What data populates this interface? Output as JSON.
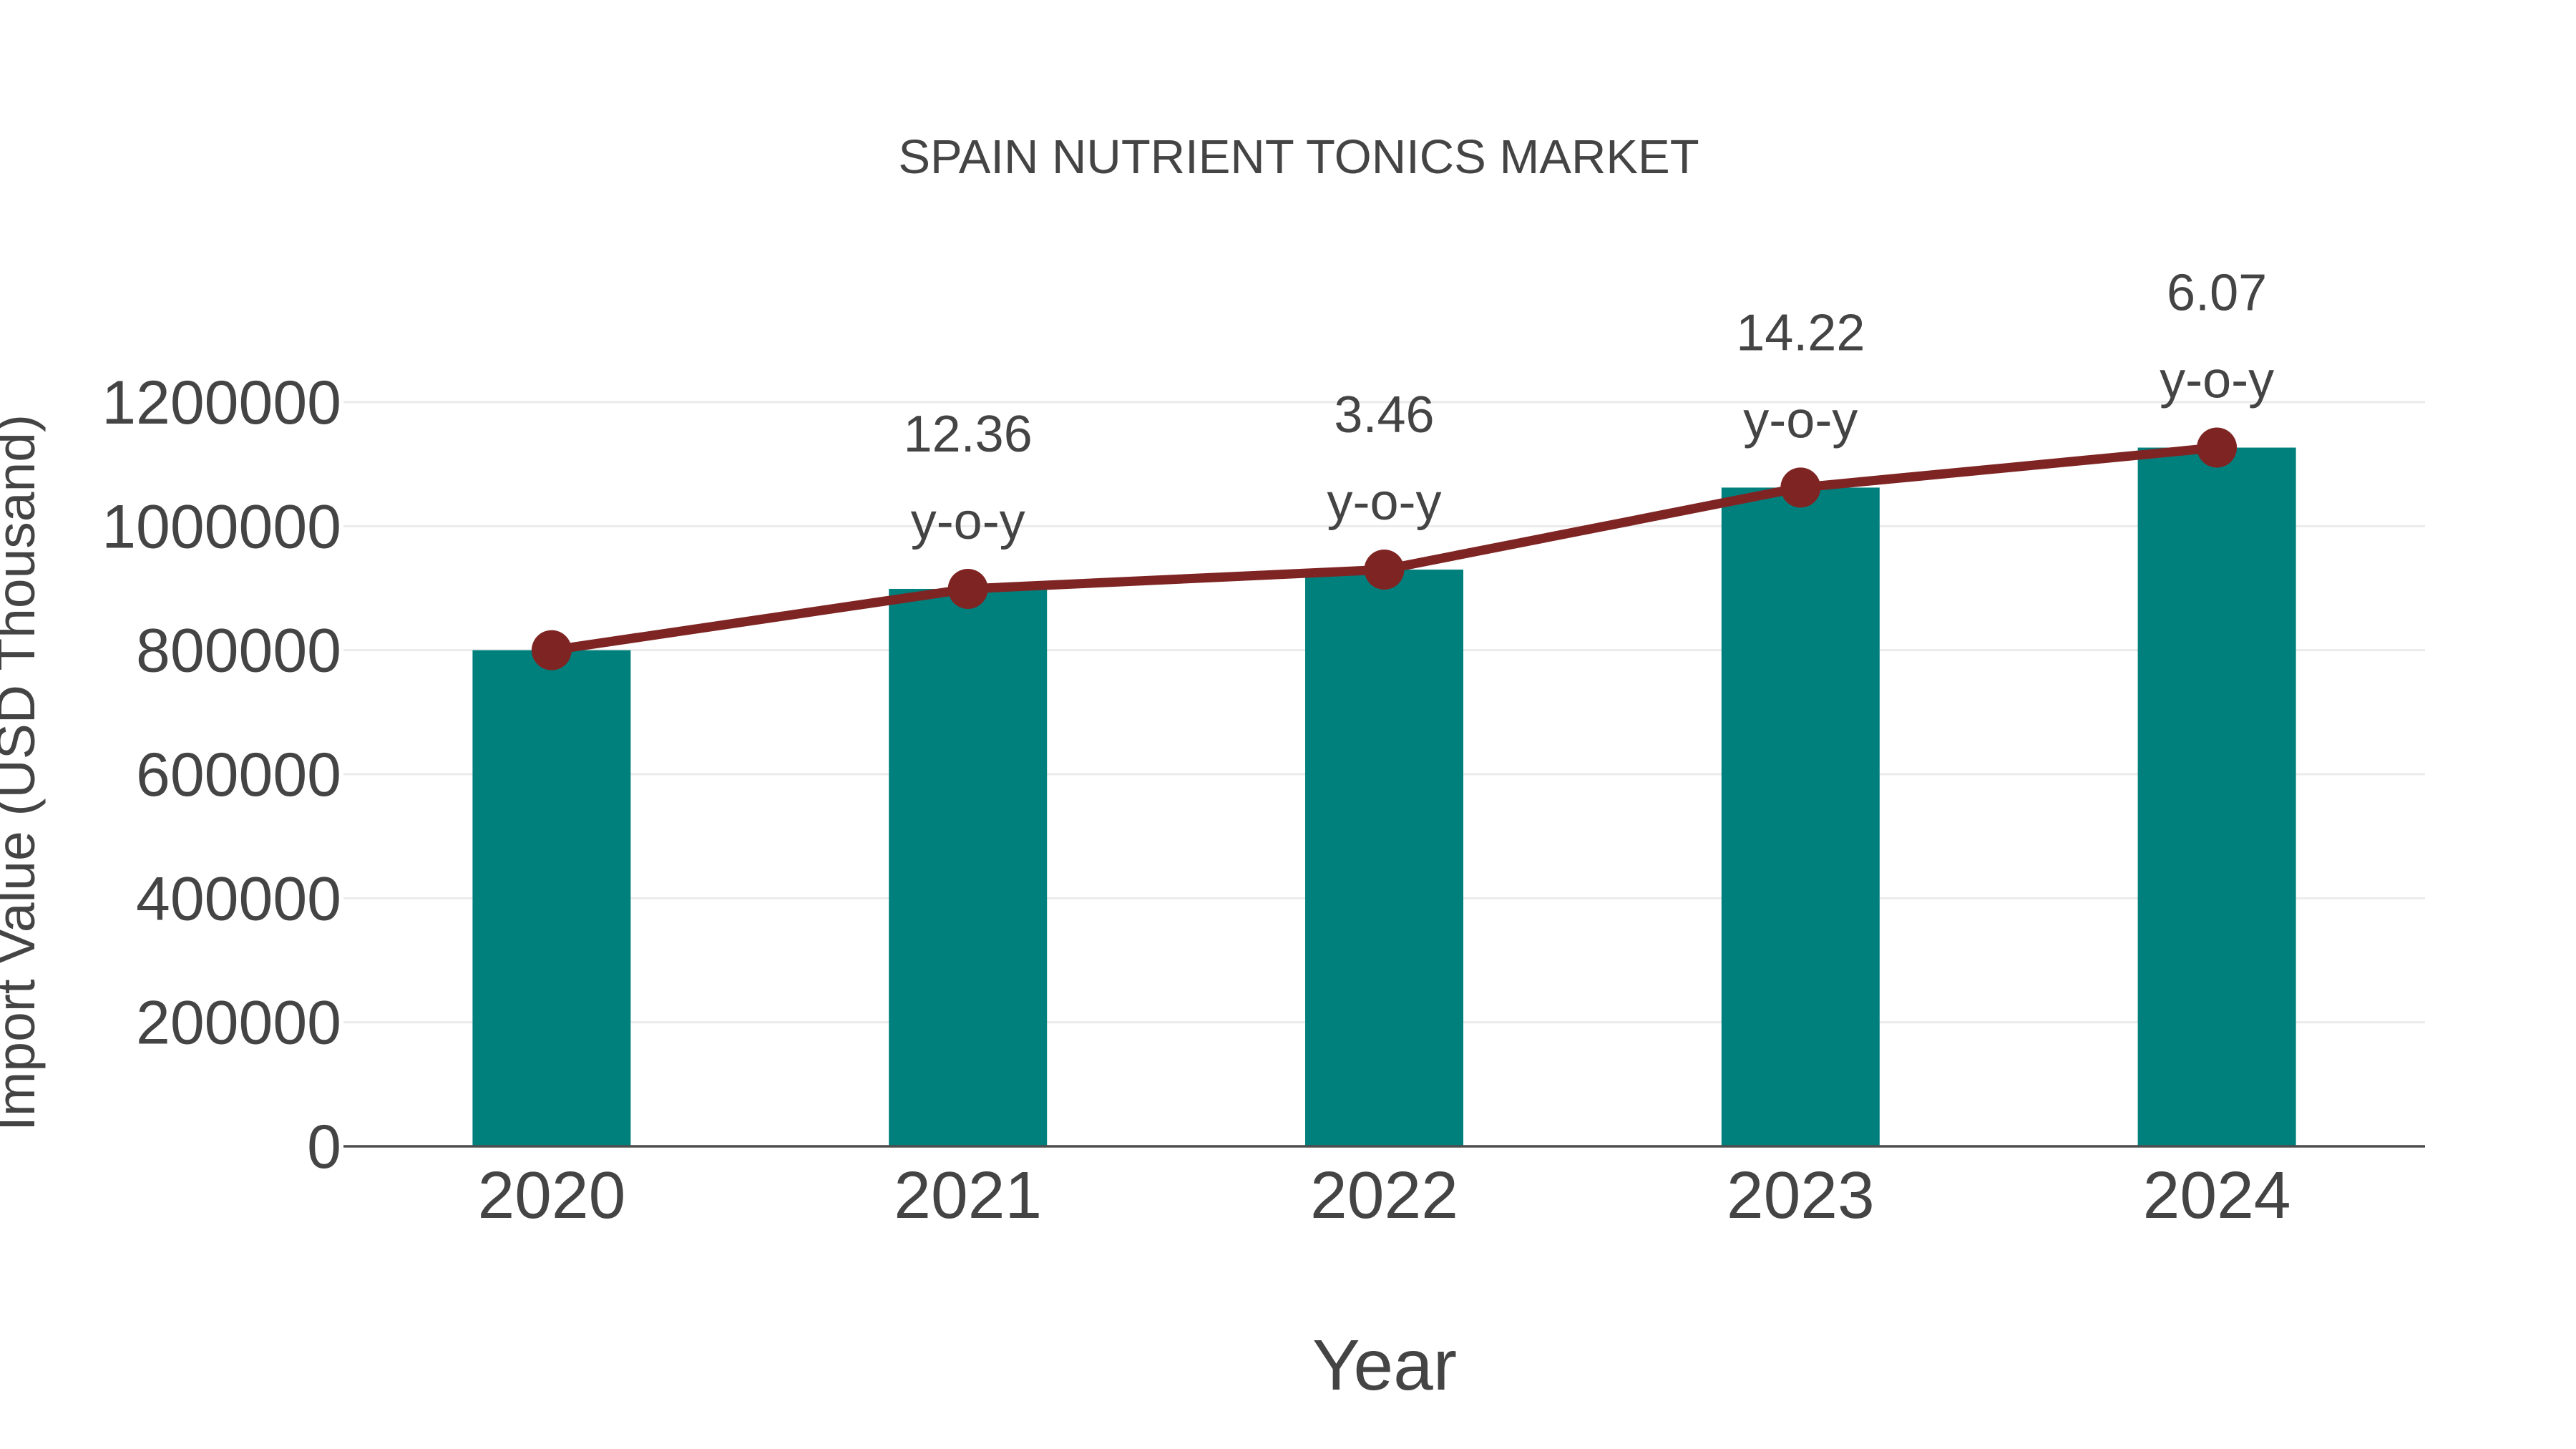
{
  "figure": {
    "background": "#FFFFFF"
  },
  "chart_data": {
    "type": "bar",
    "subtype": "bar-with-line-overlay",
    "title": "SPAIN NUTRIENT TONICS MARKET",
    "xlabel": "Year",
    "ylabel": "Import Value (USD Thousand)",
    "categories": [
      "2020",
      "2021",
      "2022",
      "2023",
      "2024"
    ],
    "series": [
      {
        "name": "Import Value (USD Thousand)",
        "type": "bar",
        "values": [
          800000,
          898880,
          929981,
          1062224,
          1126701
        ],
        "color": "#00807D"
      },
      {
        "name": "Import Value trend",
        "type": "line",
        "values": [
          800000,
          898880,
          929981,
          1062224,
          1126701
        ],
        "color": "#7E2524",
        "marker": "circle"
      }
    ],
    "annotations": [
      {
        "category": "2021",
        "lines": [
          "12.36",
          "y-o-y"
        ]
      },
      {
        "category": "2022",
        "lines": [
          "3.46",
          "y-o-y"
        ]
      },
      {
        "category": "2023",
        "lines": [
          "14.22",
          "y-o-y"
        ]
      },
      {
        "category": "2024",
        "lines": [
          "6.07",
          "y-o-y"
        ]
      }
    ],
    "y_ticks": [
      0,
      200000,
      400000,
      600000,
      800000,
      1000000,
      1200000
    ],
    "ylim": [
      0,
      1200000
    ],
    "grid": true,
    "legend_position": "none",
    "colors": {
      "bar": "#00807D",
      "line": "#7E2524",
      "text": "#444444",
      "grid": "#EBEBEB",
      "axis": "#4D4D4D",
      "background": "#FFFFFF"
    }
  }
}
